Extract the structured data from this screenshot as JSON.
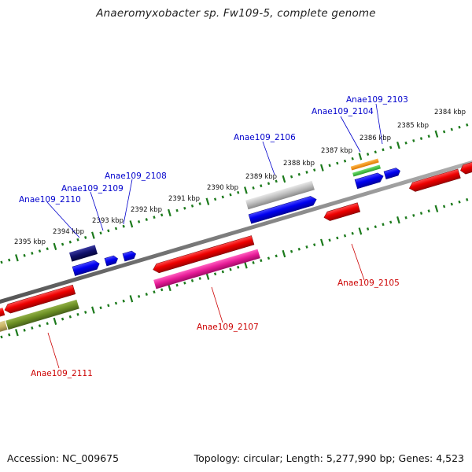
{
  "title": "Anaeromyxobacter sp. Fw109-5, complete genome",
  "footer": {
    "accession": "Accession: NC_009675",
    "topology": "Topology: circular; Length: 5,277,990 bp; Genes: 4,523"
  },
  "colors": {
    "backbone": "#7f7f7f",
    "tick": "#1c7a1c",
    "label_top": "#0000cc",
    "label_bottom": "#cc0000"
  },
  "scale_labels": [
    "2384 kbp",
    "2385 kbp",
    "2386 kbp",
    "2387 kbp",
    "2388 kbp",
    "2389 kbp",
    "2390 kbp",
    "2391 kbp",
    "2392 kbp",
    "2393 kbp",
    "2394 kbp",
    "2395 kbp"
  ],
  "gene_labels": {
    "top": [
      "Anae109_2103",
      "Anae109_2104",
      "Anae109_2106",
      "Anae109_2108",
      "Anae109_2109",
      "Anae109_2110"
    ],
    "bottom": [
      "Anae109_2105",
      "Anae109_2107",
      "Anae109_2111"
    ]
  }
}
